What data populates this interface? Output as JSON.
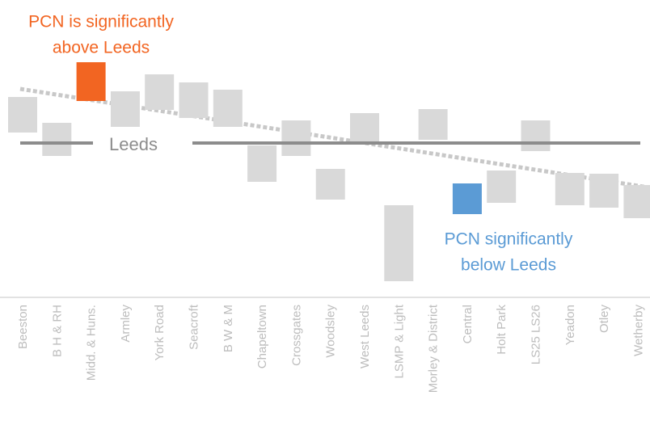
{
  "chart_data": {
    "type": "range-bar",
    "categories": [
      "Beeston",
      "B H & RH",
      "Midd. & Huns.",
      "Armley",
      "York Road",
      "Seacroft",
      "B W & M",
      "Chapeltown",
      "Crossgates",
      "Woodsley",
      "West Leeds",
      "LSMP & Light",
      "Morley & District",
      "Central",
      "Holt Park",
      "LS25 LS26",
      "Yeadon",
      "Otley",
      "Wetherby"
    ],
    "lows": [
      74.4,
      62.8,
      90,
      77.2,
      85.6,
      81.6,
      77.2,
      50,
      62.8,
      41.2,
      68.8,
      0.8,
      70.8,
      34,
      39.6,
      65.2,
      38.4,
      37.2,
      32
    ],
    "highs": [
      92,
      79.2,
      109.2,
      94.8,
      103.2,
      99.2,
      95.6,
      68,
      80.4,
      56.4,
      84,
      38.4,
      86,
      49.2,
      55.6,
      80.4,
      54.4,
      54,
      48.4
    ],
    "colors": [
      "#d9d9d9",
      "#d9d9d9",
      "#f26522",
      "#d9d9d9",
      "#d9d9d9",
      "#d9d9d9",
      "#d9d9d9",
      "#d9d9d9",
      "#d9d9d9",
      "#d9d9d9",
      "#d9d9d9",
      "#d9d9d9",
      "#d9d9d9",
      "#5b9bd5",
      "#d9d9d9",
      "#d9d9d9",
      "#d9d9d9",
      "#d9d9d9",
      "#d9d9d9"
    ],
    "leeds": 69.2,
    "leeds_label": "Leeds",
    "leeds_color": "#8c8c8c",
    "trend": [
      95.8,
      48
    ],
    "trend_color": "#c8c8c8",
    "ylim": [
      0,
      110
    ],
    "annotations": [
      {
        "lines": [
          "PCN is significantly",
          "above Leeds"
        ],
        "color": "#f26522"
      },
      {
        "lines": [
          "PCN significantly",
          "below Leeds"
        ],
        "color": "#5b9bd5"
      }
    ]
  }
}
